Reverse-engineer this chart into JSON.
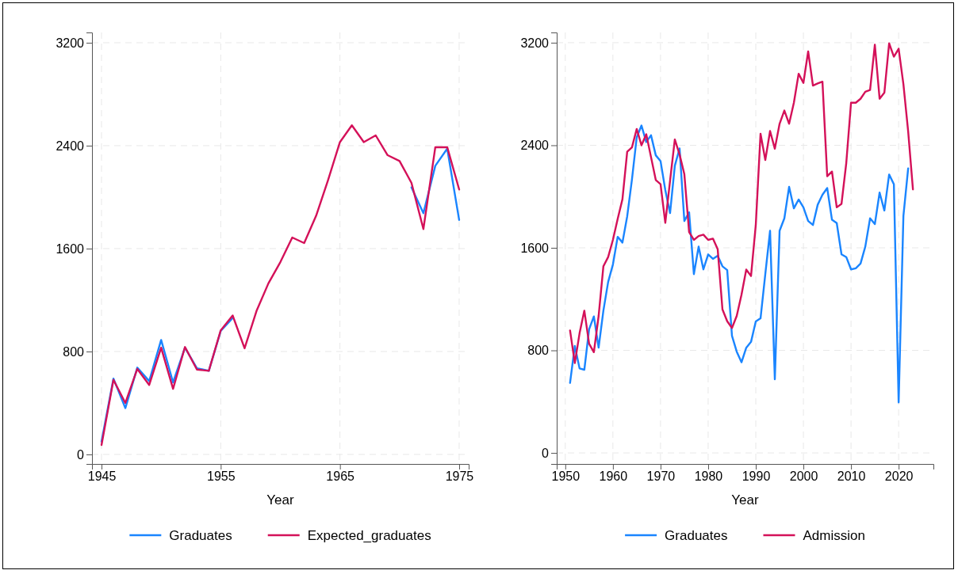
{
  "chart_data": [
    {
      "type": "line",
      "xlabel": "Year",
      "x": [
        1945,
        1946,
        1947,
        1948,
        1949,
        1950,
        1951,
        1952,
        1953,
        1954,
        1955,
        1956,
        1957,
        1958,
        1959,
        1960,
        1961,
        1962,
        1963,
        1964,
        1965,
        1966,
        1967,
        1968,
        1969,
        1970,
        1971,
        1972,
        1973,
        1974,
        1975
      ],
      "xlim": [
        1944.2,
        1975.8
      ],
      "xticks": [
        1945,
        1955,
        1965,
        1975
      ],
      "ylim": [
        -74,
        3280
      ],
      "yticks": [
        0,
        800,
        1600,
        2400,
        3200
      ],
      "grid": true,
      "legend": "bottom",
      "line_style": "solid",
      "marker": "none",
      "series": [
        {
          "name": "Graduates",
          "color": "#1a85ff",
          "values": [
            100,
            590,
            360,
            675,
            570,
            890,
            560,
            830,
            670,
            650,
            960,
            1060,
            null,
            null,
            null,
            null,
            null,
            null,
            null,
            null,
            null,
            null,
            null,
            null,
            null,
            null,
            2076,
            1875,
            2244,
            2377,
            1823
          ]
        },
        {
          "name": "Expected_graduates",
          "color": "#d41159",
          "values": [
            74,
            580,
            400,
            665,
            540,
            830,
            510,
            835,
            660,
            650,
            965,
            1080,
            825,
            1115,
            1330,
            1495,
            1686,
            1643,
            1855,
            2131,
            2428,
            2558,
            2428,
            2480,
            2326,
            2281,
            2111,
            1752,
            2388,
            2388,
            2060
          ]
        }
      ]
    },
    {
      "type": "line",
      "xlabel": "Year",
      "xlim": [
        1948.2,
        2027.3
      ],
      "xticks": [
        1950,
        1960,
        1970,
        1980,
        1990,
        2000,
        2010,
        2020
      ],
      "ylim": [
        -86,
        3280
      ],
      "yticks": [
        0,
        800,
        1600,
        2400,
        3200
      ],
      "grid": true,
      "legend": "bottom",
      "line_style": "solid",
      "marker": "none",
      "x": [
        1951,
        1952,
        1953,
        1954,
        1955,
        1956,
        1957,
        1958,
        1959,
        1960,
        1961,
        1962,
        1963,
        1964,
        1965,
        1966,
        1967,
        1968,
        1969,
        1970,
        1971,
        1972,
        1973,
        1974,
        1975,
        1976,
        1977,
        1978,
        1979,
        1980,
        1981,
        1982,
        1983,
        1984,
        1985,
        1986,
        1987,
        1988,
        1989,
        1990,
        1991,
        1992,
        1993,
        1994,
        1995,
        1996,
        1997,
        1998,
        1999,
        2000,
        2001,
        2002,
        2003,
        2004,
        2005,
        2006,
        2007,
        2008,
        2009,
        2010,
        2011,
        2012,
        2013,
        2014,
        2015,
        2016,
        2017,
        2018,
        2019,
        2020,
        2021,
        2022,
        2023
      ],
      "series": [
        {
          "name": "Graduates",
          "color": "#1a85ff",
          "values": [
            546,
            835,
            659,
            649,
            965,
            1065,
            821,
            1110,
            1334,
            1470,
            1686,
            1641,
            1846,
            2133,
            2462,
            2554,
            2425,
            2478,
            2322,
            2277,
            2051,
            1871,
            2240,
            2375,
            1809,
            1877,
            1395,
            1610,
            1432,
            1549,
            1514,
            1539,
            1456,
            1426,
            914,
            790,
            707,
            821,
            866,
            1026,
            1050,
            1395,
            1733,
            574,
            1733,
            1830,
            2076,
            1908,
            1977,
            1916,
            1809,
            1778,
            1936,
            2014,
            2066,
            1819,
            1793,
            1549,
            1528,
            1432,
            1440,
            1477,
            1610,
            1830,
            1785,
            2031,
            1891,
            2172,
            2096,
            394,
            1850,
            2220,
            null
          ]
        },
        {
          "name": "Admission",
          "color": "#d41159",
          "values": [
            955,
            701,
            934,
            1110,
            852,
            786,
            1069,
            1456,
            1528,
            1662,
            1826,
            1979,
            2349,
            2384,
            2527,
            2400,
            2486,
            2308,
            2129,
            2096,
            1795,
            2123,
            2445,
            2328,
            2174,
            1723,
            1662,
            1692,
            1703,
            1662,
            1672,
            1590,
            1120,
            1027,
            975,
            1069,
            1234,
            1430,
            1380,
            1778,
            2490,
            2285,
            2511,
            2373,
            2568,
            2671,
            2568,
            2732,
            2958,
            2886,
            3132,
            2866,
            2882,
            2896,
            2158,
            2195,
            1916,
            1943,
            2261,
            2732,
            2732,
            2763,
            2818,
            2831,
            3184,
            2763,
            2810,
            3195,
            3091,
            3153,
            2876,
            2507,
            2056
          ]
        }
      ]
    }
  ]
}
